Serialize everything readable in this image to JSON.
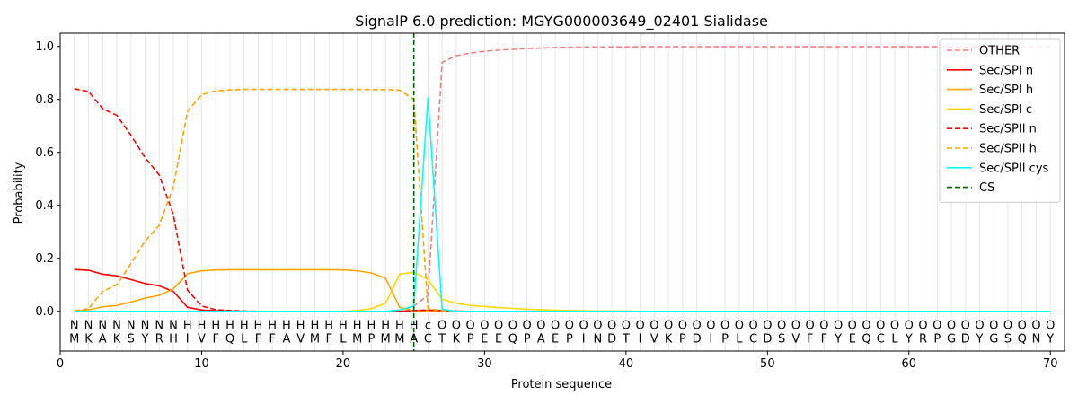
{
  "chart_data": {
    "type": "line",
    "title": "SignalP 6.0 prediction: MGYG000003649_02401 Sialidase",
    "xlabel": "Protein sequence",
    "ylabel": "Probability",
    "xlim": [
      0,
      71
    ],
    "ylim": [
      -0.15,
      1.05
    ],
    "x_ticks": [
      0,
      10,
      20,
      30,
      40,
      50,
      60,
      70
    ],
    "y_ticks": [
      0.0,
      0.2,
      0.4,
      0.6,
      0.8,
      1.0
    ],
    "x_tick_labels": [
      "0",
      "10",
      "20",
      "30",
      "40",
      "50",
      "60",
      "70"
    ],
    "y_tick_labels": [
      "0.0",
      "0.2",
      "0.4",
      "0.6",
      "0.8",
      "1.0"
    ],
    "grid": "vertical lines at each residue",
    "legend_position": "top-right",
    "sequence": [
      "M",
      "K",
      "A",
      "K",
      "S",
      "Y",
      "R",
      "H",
      "I",
      "V",
      "F",
      "Q",
      "L",
      "F",
      "F",
      "A",
      "V",
      "M",
      "F",
      "L",
      "M",
      "P",
      "M",
      "M",
      "A",
      "C",
      "T",
      "K",
      "P",
      "E",
      "E",
      "Q",
      "P",
      "A",
      "E",
      "P",
      "I",
      "N",
      "D",
      "T",
      "I",
      "V",
      "K",
      "P",
      "D",
      "I",
      "P",
      "L",
      "C",
      "D",
      "S",
      "V",
      "F",
      "F",
      "Y",
      "E",
      "Q",
      "C",
      "L",
      "Y",
      "R",
      "P",
      "G",
      "D",
      "Y",
      "G",
      "S",
      "Q",
      "N",
      "Y"
    ],
    "region_labels": [
      "N",
      "N",
      "N",
      "N",
      "N",
      "N",
      "N",
      "N",
      "H",
      "H",
      "H",
      "H",
      "H",
      "H",
      "H",
      "H",
      "H",
      "H",
      "H",
      "H",
      "H",
      "H",
      "H",
      "H",
      "H",
      "c",
      "O",
      "O",
      "O",
      "O",
      "O",
      "O",
      "O",
      "O",
      "O",
      "O",
      "O",
      "O",
      "O",
      "O",
      "O",
      "O",
      "O",
      "O",
      "O",
      "O",
      "O",
      "O",
      "O",
      "O",
      "O",
      "O",
      "O",
      "O",
      "O",
      "O",
      "O",
      "O",
      "O",
      "O",
      "O",
      "O",
      "O",
      "O",
      "O",
      "O",
      "O",
      "O",
      "O",
      "O"
    ],
    "region_colors": {
      "N": "#ff0000",
      "H": "#ffa500",
      "c": "#00e5ee",
      "O": "#808080"
    },
    "cleavage_site": 25,
    "series": [
      {
        "name": "OTHER",
        "color": "#f08080",
        "dash": "dashed",
        "values": [
          0,
          0,
          0,
          0,
          0,
          0,
          0,
          0,
          0,
          0,
          0,
          0,
          0,
          0,
          0,
          0,
          0,
          0,
          0,
          0,
          0,
          0,
          0,
          0,
          0.02,
          0.06,
          0.94,
          0.965,
          0.975,
          0.982,
          0.986,
          0.989,
          0.992,
          0.994,
          0.996,
          0.997,
          0.998,
          0.998,
          0.998,
          0.998,
          0.999,
          0.999,
          0.999,
          0.999,
          0.999,
          0.999,
          0.999,
          0.999,
          0.999,
          0.999,
          0.999,
          0.999,
          0.999,
          0.999,
          0.999,
          0.999,
          0.999,
          0.999,
          0.999,
          0.999,
          0.999,
          0.999,
          0.999,
          0.999,
          0.999,
          0.999,
          0.999,
          0.999,
          0.999,
          0.999
        ]
      },
      {
        "name": "Sec/SPI n",
        "color": "#ff0000",
        "dash": "solid",
        "values": [
          0.158,
          0.155,
          0.14,
          0.134,
          0.12,
          0.105,
          0.096,
          0.075,
          0.015,
          0.005,
          0.002,
          0.001,
          0,
          0,
          0,
          0,
          0,
          0,
          0,
          0,
          0,
          0,
          0,
          0,
          0.003,
          0.003,
          0.002,
          0,
          0,
          0,
          0,
          0,
          0,
          0,
          0,
          0,
          0,
          0,
          0,
          0,
          0,
          0,
          0,
          0,
          0,
          0,
          0,
          0,
          0,
          0,
          0,
          0,
          0,
          0,
          0,
          0,
          0,
          0,
          0,
          0,
          0,
          0,
          0,
          0,
          0,
          0,
          0,
          0,
          0,
          0
        ]
      },
      {
        "name": "Sec/SPI h",
        "color": "#ffa500",
        "dash": "solid",
        "values": [
          0,
          0.005,
          0.017,
          0.022,
          0.035,
          0.05,
          0.06,
          0.085,
          0.142,
          0.153,
          0.156,
          0.157,
          0.157,
          0.157,
          0.157,
          0.157,
          0.157,
          0.157,
          0.157,
          0.156,
          0.153,
          0.145,
          0.125,
          0.015,
          0.002,
          0.001,
          0,
          0,
          0,
          0,
          0,
          0,
          0,
          0,
          0,
          0,
          0,
          0,
          0,
          0,
          0,
          0,
          0,
          0,
          0,
          0,
          0,
          0,
          0,
          0,
          0,
          0,
          0,
          0,
          0,
          0,
          0,
          0,
          0,
          0,
          0,
          0,
          0,
          0,
          0,
          0,
          0,
          0,
          0,
          0
        ]
      },
      {
        "name": "Sec/SPI c",
        "color": "#ffd700",
        "dash": "solid",
        "values": [
          0,
          0,
          0,
          0,
          0,
          0,
          0,
          0,
          0,
          0,
          0,
          0,
          0,
          0,
          0,
          0,
          0,
          0,
          0,
          0,
          0.003,
          0.01,
          0.03,
          0.14,
          0.148,
          0.12,
          0.045,
          0.03,
          0.022,
          0.018,
          0.014,
          0.011,
          0.008,
          0.006,
          0.004,
          0.003,
          0.002,
          0.001,
          0.001,
          0.001,
          0,
          0,
          0,
          0,
          0,
          0,
          0,
          0,
          0,
          0,
          0,
          0,
          0,
          0,
          0,
          0,
          0,
          0,
          0,
          0,
          0,
          0,
          0,
          0,
          0,
          0,
          0,
          0,
          0,
          0
        ]
      },
      {
        "name": "Sec/SPII n",
        "color": "#ff0000",
        "dash": "dashed",
        "values": [
          0.84,
          0.83,
          0.765,
          0.74,
          0.665,
          0.58,
          0.515,
          0.365,
          0.08,
          0.02,
          0.006,
          0.003,
          0.001,
          0,
          0,
          0,
          0,
          0,
          0,
          0,
          0,
          0,
          0,
          0,
          0.003,
          0.005,
          0.003,
          0.001,
          0,
          0,
          0,
          0,
          0,
          0,
          0,
          0,
          0,
          0,
          0,
          0,
          0,
          0,
          0,
          0,
          0,
          0,
          0,
          0,
          0,
          0,
          0,
          0,
          0,
          0,
          0,
          0,
          0,
          0,
          0,
          0,
          0,
          0,
          0,
          0,
          0,
          0,
          0,
          0,
          0,
          0
        ]
      },
      {
        "name": "Sec/SPII h",
        "color": "#ffa500",
        "dash": "dashed",
        "values": [
          0.002,
          0.01,
          0.075,
          0.1,
          0.18,
          0.265,
          0.325,
          0.47,
          0.755,
          0.818,
          0.832,
          0.836,
          0.838,
          0.838,
          0.838,
          0.838,
          0.838,
          0.838,
          0.838,
          0.838,
          0.838,
          0.837,
          0.837,
          0.835,
          0.8,
          0.01,
          0.003,
          0.001,
          0,
          0,
          0,
          0,
          0,
          0,
          0,
          0,
          0,
          0,
          0,
          0,
          0,
          0,
          0,
          0,
          0,
          0,
          0,
          0,
          0,
          0,
          0,
          0,
          0,
          0,
          0,
          0,
          0,
          0,
          0,
          0,
          0,
          0,
          0,
          0,
          0,
          0,
          0,
          0,
          0,
          0
        ]
      },
      {
        "name": "Sec/SPII cys",
        "color": "#00ffff",
        "dash": "solid",
        "values": [
          0,
          0,
          0,
          0,
          0,
          0,
          0,
          0,
          0,
          0,
          0,
          0,
          0,
          0,
          0,
          0,
          0,
          0,
          0,
          0,
          0,
          0,
          0,
          0.005,
          0.02,
          0.808,
          0.008,
          0,
          0,
          0,
          0,
          0,
          0,
          0,
          0,
          0,
          0,
          0,
          0,
          0,
          0,
          0,
          0,
          0,
          0,
          0,
          0,
          0,
          0,
          0,
          0,
          0,
          0,
          0,
          0,
          0,
          0,
          0,
          0,
          0,
          0,
          0,
          0,
          0,
          0,
          0,
          0,
          0,
          0,
          0
        ]
      },
      {
        "name": "CS",
        "color": "#006400",
        "dash": "dashed",
        "values": []
      }
    ]
  }
}
